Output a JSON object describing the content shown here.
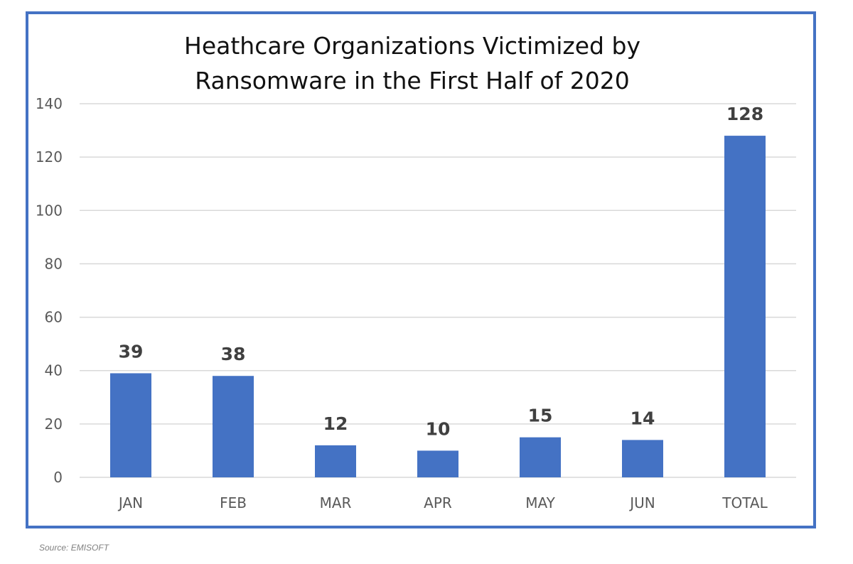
{
  "source": "Source: EMISOFT",
  "colors": {
    "frame": "#4472C4",
    "bar": "#4472C4",
    "grid": "#D9D9D9",
    "tick_text": "#595959",
    "data_label": "#404040"
  },
  "chart_data": {
    "type": "bar",
    "title_lines": [
      "Heathcare Organizations Victimized by",
      "Ransomware in the First Half of 2020"
    ],
    "categories": [
      "JAN",
      "FEB",
      "MAR",
      "APR",
      "MAY",
      "JUN",
      "TOTAL"
    ],
    "values": [
      39,
      38,
      12,
      10,
      15,
      14,
      128
    ],
    "data_labels": [
      "39",
      "38",
      "12",
      "10",
      "15",
      "14",
      "128"
    ],
    "xlabel": "",
    "ylabel": "",
    "ylim": [
      0,
      140
    ],
    "yticks": [
      0,
      20,
      40,
      60,
      80,
      100,
      120,
      140
    ],
    "grid": true,
    "legend": "none"
  }
}
